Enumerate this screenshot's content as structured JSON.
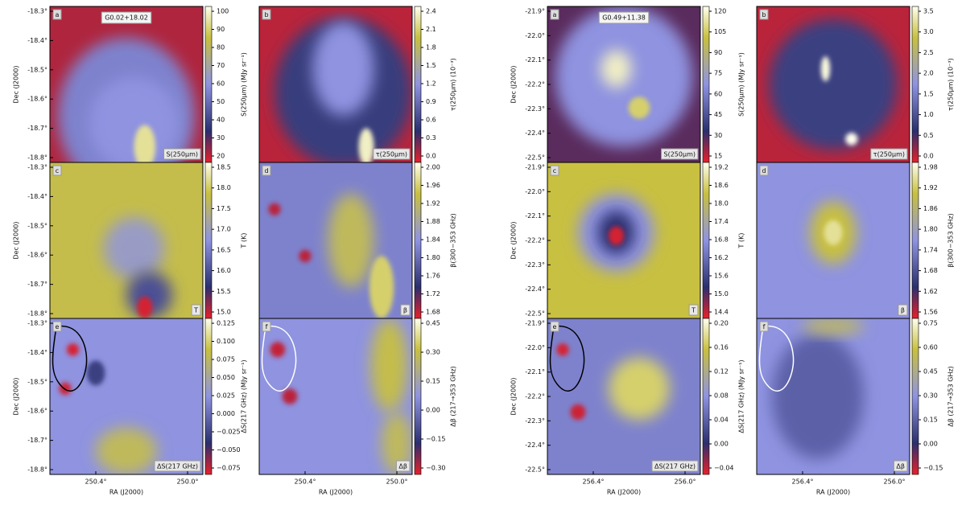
{
  "figures": [
    {
      "title": "G0.02+18.02",
      "y_axis_label": "Dec (J2000)",
      "x_axis_label": "RA (J2000)",
      "y_ticks": [
        "-18.3°",
        "-18.4°",
        "-18.5°",
        "-18.6°",
        "-18.7°",
        "-18.8°"
      ],
      "x_ticks": [
        "250.4°",
        "250.0°"
      ],
      "panels": [
        {
          "letter": "a",
          "tag": "S(250μm)",
          "colorbar_label": "S(250μm) (MJy sr⁻¹)",
          "colorbar_ticks": [
            "100",
            "90",
            "80",
            "70",
            "60",
            "50",
            "40",
            "30",
            "20"
          ]
        },
        {
          "letter": "b",
          "tag": "τ(250μm)",
          "colorbar_label": "τ(250μm) (10⁻³)",
          "colorbar_ticks": [
            "2.4",
            "2.1",
            "1.8",
            "1.5",
            "1.2",
            "0.9",
            "0.6",
            "0.3",
            "0.0"
          ]
        },
        {
          "letter": "c",
          "tag": "T",
          "colorbar_label": "T (K)",
          "colorbar_ticks": [
            "18.5",
            "18.0",
            "17.5",
            "17.0",
            "16.5",
            "16.0",
            "15.5",
            "15.0"
          ]
        },
        {
          "letter": "d",
          "tag": "β",
          "colorbar_label": "β(300−353 GHz)",
          "colorbar_ticks": [
            "2.00",
            "1.96",
            "1.92",
            "1.88",
            "1.84",
            "1.80",
            "1.76",
            "1.72",
            "1.68"
          ]
        },
        {
          "letter": "e",
          "tag": "ΔS(217 GHz)",
          "colorbar_label": "ΔS(217 GHz) (MJy sr⁻¹)",
          "colorbar_ticks": [
            "0.125",
            "0.100",
            "0.075",
            "0.050",
            "0.025",
            "0.000",
            "−0.025",
            "−0.050",
            "−0.075"
          ]
        },
        {
          "letter": "f",
          "tag": "Δβ",
          "colorbar_label": "Δβ (217→353 GHz)",
          "colorbar_ticks": [
            "0.45",
            "0.30",
            "0.15",
            "0.00",
            "−0.15",
            "−0.30"
          ]
        }
      ]
    },
    {
      "title": "G0.49+11.38",
      "y_axis_label": "Dec (J2000)",
      "x_axis_label": "RA (J2000)",
      "y_ticks": [
        "-21.9°",
        "-22.0°",
        "-22.1°",
        "-22.2°",
        "-22.3°",
        "-22.4°",
        "-22.5°"
      ],
      "x_ticks": [
        "256.4°",
        "256.0°"
      ],
      "panels": [
        {
          "letter": "a",
          "tag": "S(250μm)",
          "colorbar_label": "S(250μm) (MJy sr⁻¹)",
          "colorbar_ticks": [
            "120",
            "105",
            "90",
            "75",
            "60",
            "45",
            "30",
            "15"
          ]
        },
        {
          "letter": "b",
          "tag": "τ(250μm)",
          "colorbar_label": "τ(250μm) (10⁻³)",
          "colorbar_ticks": [
            "3.5",
            "3.0",
            "2.5",
            "2.0",
            "1.5",
            "1.0",
            "0.5",
            "0.0"
          ]
        },
        {
          "letter": "c",
          "tag": "T",
          "colorbar_label": "T (K)",
          "colorbar_ticks": [
            "19.2",
            "18.6",
            "18.0",
            "17.4",
            "16.8",
            "16.2",
            "15.6",
            "15.0",
            "14.4"
          ]
        },
        {
          "letter": "d",
          "tag": "β",
          "colorbar_label": "β(300−353 GHz)",
          "colorbar_ticks": [
            "1.98",
            "1.92",
            "1.86",
            "1.80",
            "1.74",
            "1.68",
            "1.62",
            "1.56"
          ]
        },
        {
          "letter": "e",
          "tag": "ΔS(217 GHz)",
          "colorbar_label": "ΔS(217 GHz) (MJy sr⁻¹)",
          "colorbar_ticks": [
            "0.20",
            "0.16",
            "0.12",
            "0.08",
            "0.04",
            "0.00",
            "−0.04"
          ]
        },
        {
          "letter": "f",
          "tag": "Δβ",
          "colorbar_label": "Δβ (217→353 GHz)",
          "colorbar_ticks": [
            "0.75",
            "0.60",
            "0.45",
            "0.30",
            "0.15",
            "0.00",
            "−0.15"
          ]
        }
      ]
    }
  ]
}
